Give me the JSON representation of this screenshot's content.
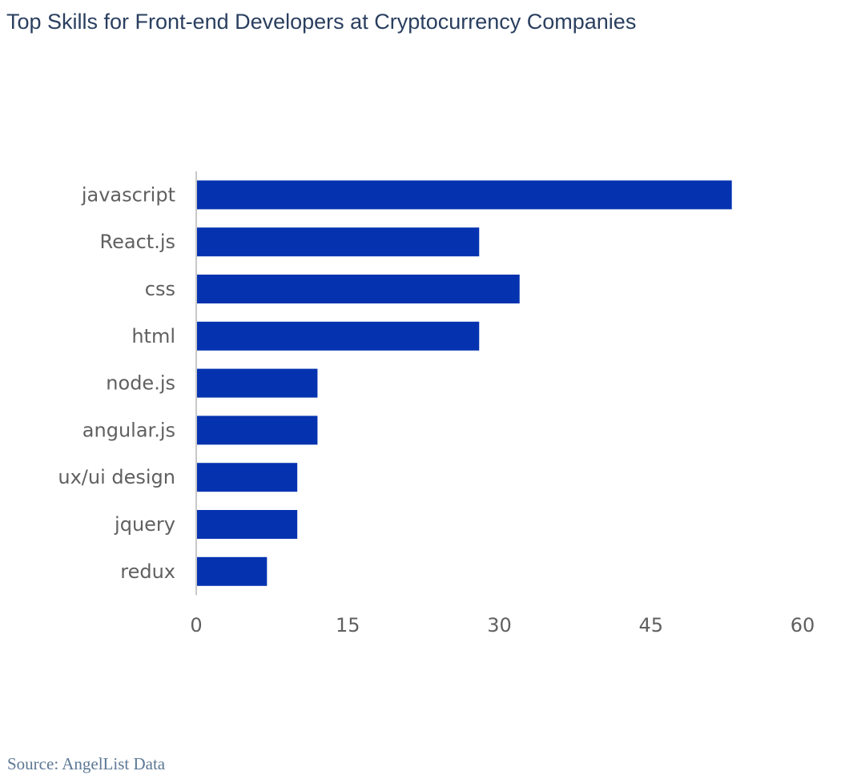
{
  "chart_data": {
    "type": "bar",
    "orientation": "horizontal",
    "title": "Top Skills for Front-end Developers at Cryptocurrency Companies",
    "categories": [
      "javascript",
      "React.js",
      "css",
      "html",
      "node.js",
      "angular.js",
      "ux/ui design",
      "jquery",
      "redux"
    ],
    "values": [
      53,
      28,
      32,
      28,
      12,
      12,
      10,
      10,
      7
    ],
    "xticks": [
      0,
      15,
      30,
      45,
      60
    ],
    "xlim": [
      0,
      60
    ],
    "xlabel": "",
    "ylabel": "",
    "grid": false,
    "bar_color": "#0533b0",
    "axis_color": "#c8c8c8"
  },
  "source": "Source: AngelList Data"
}
